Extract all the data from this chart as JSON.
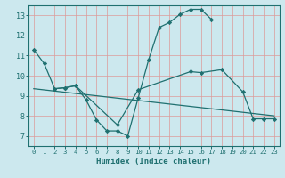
{
  "xlabel": "Humidex (Indice chaleur)",
  "xlim": [
    -0.5,
    23.5
  ],
  "ylim": [
    6.5,
    13.5
  ],
  "yticks": [
    7,
    8,
    9,
    10,
    11,
    12,
    13
  ],
  "xticks": [
    0,
    1,
    2,
    3,
    4,
    5,
    6,
    7,
    8,
    9,
    10,
    11,
    12,
    13,
    14,
    15,
    16,
    17,
    18,
    19,
    20,
    21,
    22,
    23
  ],
  "bg_color": "#cce8ee",
  "line_color": "#1f7070",
  "grid_color": "#dd9999",
  "curve1_x": [
    0,
    1,
    2,
    3,
    4,
    5,
    6,
    7,
    8,
    9,
    10,
    11,
    12,
    13,
    14,
    15,
    16,
    17
  ],
  "curve1_y": [
    11.3,
    10.6,
    9.35,
    9.4,
    9.5,
    8.8,
    7.8,
    7.25,
    7.25,
    7.0,
    8.9,
    10.8,
    12.4,
    12.65,
    13.05,
    13.3,
    13.3,
    12.8
  ],
  "curve2_x": [
    2,
    3,
    4,
    8,
    10,
    15,
    16,
    18,
    20,
    21,
    22,
    23
  ],
  "curve2_y": [
    9.35,
    9.4,
    9.5,
    7.55,
    9.3,
    10.2,
    10.15,
    10.3,
    9.2,
    7.85,
    7.85,
    7.85
  ],
  "curve3_x": [
    0,
    23
  ],
  "curve3_y": [
    9.35,
    8.0
  ]
}
